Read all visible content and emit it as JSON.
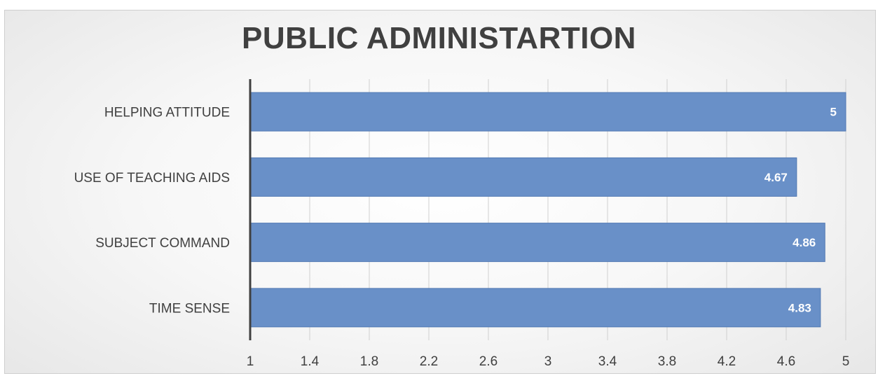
{
  "chart_data": {
    "type": "bar",
    "orientation": "horizontal",
    "title": "PUBLIC ADMINISTARTION",
    "categories": [
      "HELPING ATTITUDE",
      "USE OF TEACHING AIDS",
      "SUBJECT COMMAND",
      "TIME SENSE"
    ],
    "values": [
      5,
      4.67,
      4.86,
      4.83
    ],
    "data_labels": [
      "5",
      "4.67",
      "4.86",
      "4.83"
    ],
    "xlim": [
      1,
      5
    ],
    "xticks": [
      "1",
      "1.4",
      "1.8",
      "2.2",
      "2.6",
      "3",
      "3.4",
      "3.8",
      "4.2",
      "4.6",
      "5"
    ],
    "xlabel": "",
    "ylabel": "",
    "grid": true,
    "legend": "none",
    "colors": {
      "bar": "#6990c8",
      "bar_border": "#5279b3",
      "grid": "#d0d0d0",
      "axis": "#404040",
      "title": "#404040"
    }
  }
}
